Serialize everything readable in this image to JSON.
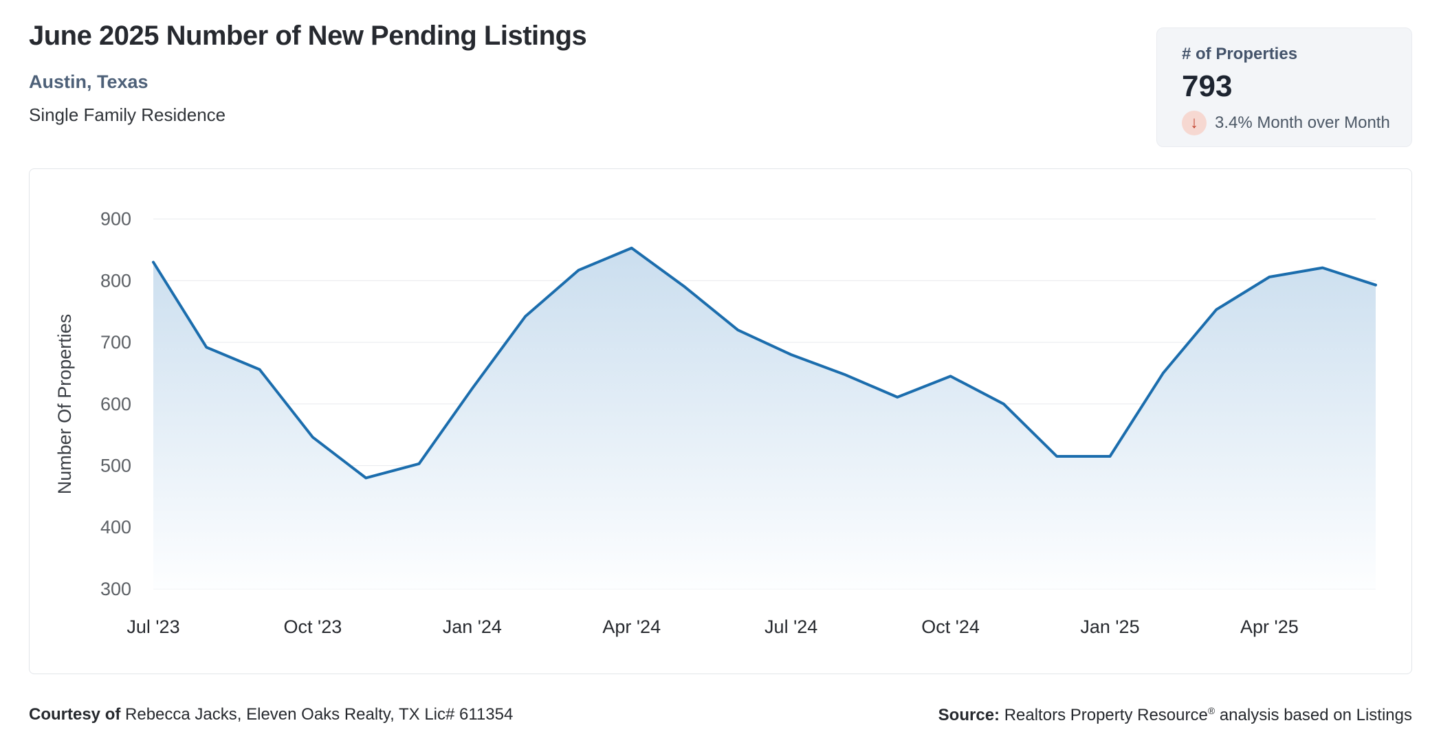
{
  "header": {
    "title": "June 2025 Number of New Pending Listings",
    "location": "Austin, Texas",
    "property_type": "Single Family Residence"
  },
  "stat_card": {
    "label": "# of Properties",
    "value": "793",
    "direction": "down",
    "arrow_icon": "↓",
    "change_text": "3.4% Month over Month"
  },
  "footer": {
    "courtesy_label": "Courtesy of",
    "courtesy_text": " Rebecca Jacks, Eleven Oaks Realty, TX Lic# 611354",
    "source_label": "Source:",
    "source_text_before_reg": " Realtors Property Resource",
    "source_reg": "®",
    "source_text_after_reg": " analysis based on Listings"
  },
  "colors": {
    "line": "#1b6dad",
    "fill_top": "#c6dbed",
    "fill_bottom": "#fdfeff",
    "gridline": "#e8eaed",
    "ytick_text": "#5c6065",
    "xtick_text": "#25282d",
    "axis_title_text": "#3b3f45",
    "stat_down_arrow": "#c03d28",
    "stat_down_circle": "#f6d8d1",
    "accent_location": "#4d6078"
  },
  "chart_data": {
    "type": "area",
    "title": "",
    "xlabel": "",
    "ylabel": "Number Of Properties",
    "ylim": [
      300,
      900
    ],
    "yticks": [
      900,
      800,
      700,
      600,
      500,
      400,
      300
    ],
    "grid": "horizontal",
    "legend": "none",
    "x": [
      "Jul '23",
      "Aug '23",
      "Sep '23",
      "Oct '23",
      "Nov '23",
      "Dec '23",
      "Jan '24",
      "Feb '24",
      "Mar '24",
      "Apr '24",
      "May '24",
      "Jun '24",
      "Jul '24",
      "Aug '24",
      "Sep '24",
      "Oct '24",
      "Nov '24",
      "Dec '24",
      "Jan '25",
      "Feb '25",
      "Mar '25",
      "Apr '25",
      "May '25",
      "Jun '25"
    ],
    "series": [
      {
        "name": "Number of New Pending Listings",
        "values": [
          830,
          692,
          656,
          546,
          480,
          503,
          625,
          742,
          817,
          853,
          790,
          720,
          680,
          648,
          611,
          645,
          600,
          515,
          515,
          650,
          753,
          806,
          821,
          793
        ]
      }
    ],
    "xticks": [
      {
        "label": "Jul '23",
        "index": 0
      },
      {
        "label": "Oct '23",
        "index": 3
      },
      {
        "label": "Jan '24",
        "index": 6
      },
      {
        "label": "Apr '24",
        "index": 9
      },
      {
        "label": "Jul '24",
        "index": 12
      },
      {
        "label": "Oct '24",
        "index": 15
      },
      {
        "label": "Jan '25",
        "index": 18
      },
      {
        "label": "Apr '25",
        "index": 21
      }
    ]
  }
}
